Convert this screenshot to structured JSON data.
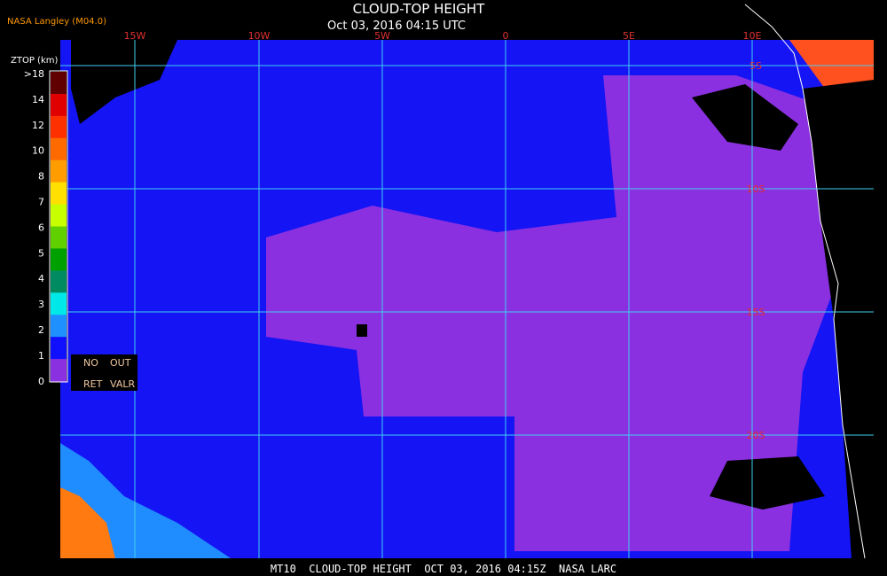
{
  "header": {
    "title": "CLOUD-TOP HEIGHT",
    "subtitle": "Oct 03, 2016 04:15 UTC",
    "credit": "NASA Langley (M04.0)"
  },
  "legend": {
    "title": "ZTOP (km)",
    "labels": [
      ">18",
      "14",
      "12",
      "10",
      "8",
      "7",
      "6",
      "5",
      "4",
      "3",
      "2",
      "1",
      "0"
    ],
    "no_data": [
      "NO",
      "OUT",
      "RET",
      "VALR"
    ]
  },
  "map": {
    "longitude_labels": [
      "15W",
      "10W",
      "5W",
      "0",
      "5E",
      "10E"
    ],
    "latitude_labels": [
      "5S",
      "10S",
      "15S",
      "20S"
    ]
  },
  "footer": "MT10  CLOUD-TOP HEIGHT  OCT 03, 2016 04:15Z  NASA LARC"
}
